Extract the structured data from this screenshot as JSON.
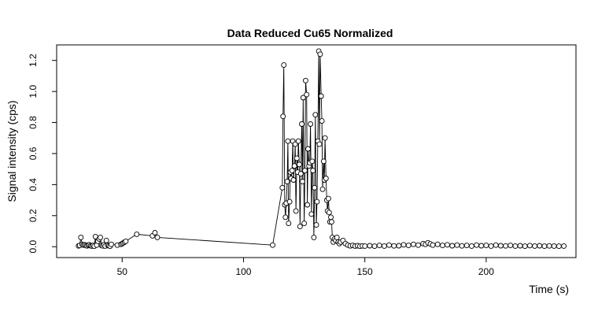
{
  "chart_data": {
    "type": "scatter",
    "title": "Data Reduced Cu65 Normalized",
    "xlabel": "Time (s)",
    "ylabel": "Signal intensity (cps)",
    "xlim": [
      23,
      237
    ],
    "ylim": [
      -0.07,
      1.3
    ],
    "xticks": [
      50,
      100,
      150,
      200
    ],
    "yticks": [
      0.0,
      0.2,
      0.4,
      0.6,
      0.8,
      1.0,
      1.2
    ],
    "grid": false,
    "legend": "none",
    "line_color": "#000000",
    "marker": "open-circle",
    "series": [
      {
        "points": [
          [
            32.0,
            0.005
          ],
          [
            32.5,
            0.008
          ],
          [
            33.0,
            0.06
          ],
          [
            33.5,
            0.015
          ],
          [
            34.0,
            0.01
          ],
          [
            34.5,
            0.012
          ],
          [
            35.0,
            0.008
          ],
          [
            35.5,
            0.005
          ],
          [
            36.0,
            0.01
          ],
          [
            36.5,
            0.012
          ],
          [
            37.0,
            0.006
          ],
          [
            37.5,
            0.004
          ],
          [
            38.0,
            0.008
          ],
          [
            38.5,
            0.003
          ],
          [
            39.0,
            0.065
          ],
          [
            39.5,
            0.01
          ],
          [
            40.0,
            0.035
          ],
          [
            40.5,
            0.05
          ],
          [
            41.0,
            0.06
          ],
          [
            41.5,
            0.008
          ],
          [
            42.0,
            0.005
          ],
          [
            42.5,
            0.012
          ],
          [
            43.0,
            0.004
          ],
          [
            43.5,
            0.04
          ],
          [
            44.0,
            0.01
          ],
          [
            44.5,
            0.006
          ],
          [
            45.0,
            0.003
          ],
          [
            45.5,
            0.015
          ],
          [
            48.0,
            0.01
          ],
          [
            49.5,
            0.015
          ],
          [
            50.0,
            0.02
          ],
          [
            50.5,
            0.025
          ],
          [
            51.0,
            0.03
          ],
          [
            51.5,
            0.035
          ],
          [
            56.0,
            0.08
          ],
          [
            62.5,
            0.07
          ],
          [
            63.5,
            0.09
          ],
          [
            64.5,
            0.06
          ],
          [
            112.0,
            0.01
          ],
          [
            116.0,
            0.38
          ],
          [
            116.3,
            0.84
          ],
          [
            116.6,
            1.17
          ],
          [
            117.0,
            0.27
          ],
          [
            117.3,
            0.19
          ],
          [
            117.6,
            0.28
          ],
          [
            118.0,
            0.42
          ],
          [
            118.3,
            0.68
          ],
          [
            118.6,
            0.15
          ],
          [
            119.0,
            0.29
          ],
          [
            119.3,
            0.48
          ],
          [
            119.6,
            0.44
          ],
          [
            120.0,
            0.49
          ],
          [
            120.3,
            0.68
          ],
          [
            120.6,
            0.43
          ],
          [
            121.0,
            0.52
          ],
          [
            121.3,
            0.66
          ],
          [
            121.6,
            0.23
          ],
          [
            122.0,
            0.57
          ],
          [
            122.3,
            0.48
          ],
          [
            122.6,
            0.68
          ],
          [
            123.0,
            0.53
          ],
          [
            123.3,
            0.13
          ],
          [
            123.6,
            0.47
          ],
          [
            124.0,
            0.79
          ],
          [
            124.3,
            0.42
          ],
          [
            124.6,
            0.96
          ],
          [
            125.0,
            0.15
          ],
          [
            125.3,
            0.49
          ],
          [
            125.6,
            1.07
          ],
          [
            126.0,
            0.98
          ],
          [
            126.3,
            0.27
          ],
          [
            126.6,
            0.63
          ],
          [
            127.0,
            0.52
          ],
          [
            127.3,
            0.54
          ],
          [
            127.6,
            0.79
          ],
          [
            128.0,
            0.21
          ],
          [
            128.3,
            0.55
          ],
          [
            128.6,
            0.49
          ],
          [
            129.0,
            0.06
          ],
          [
            129.3,
            0.38
          ],
          [
            129.6,
            0.85
          ],
          [
            130.0,
            0.14
          ],
          [
            130.3,
            0.29
          ],
          [
            130.6,
            0.68
          ],
          [
            131.0,
            1.26
          ],
          [
            131.3,
            0.66
          ],
          [
            131.6,
            1.24
          ],
          [
            132.0,
            0.97
          ],
          [
            132.3,
            0.81
          ],
          [
            132.6,
            0.37
          ],
          [
            133.0,
            0.55
          ],
          [
            133.3,
            0.43
          ],
          [
            133.6,
            0.7
          ],
          [
            134.0,
            0.44
          ],
          [
            134.3,
            0.3
          ],
          [
            134.6,
            0.23
          ],
          [
            135.0,
            0.31
          ],
          [
            135.3,
            0.22
          ],
          [
            135.6,
            0.16
          ],
          [
            136.0,
            0.19
          ],
          [
            136.3,
            0.16
          ],
          [
            136.6,
            0.06
          ],
          [
            137.0,
            0.03
          ],
          [
            137.5,
            0.05
          ],
          [
            138.0,
            0.04
          ],
          [
            138.5,
            0.06
          ],
          [
            139.0,
            0.03
          ],
          [
            139.5,
            0.02
          ],
          [
            140.0,
            0.03
          ],
          [
            141.0,
            0.04
          ],
          [
            142.0,
            0.02
          ],
          [
            143.0,
            0.01
          ],
          [
            144.0,
            0.005
          ],
          [
            145.0,
            0.008
          ],
          [
            146.0,
            0.004
          ],
          [
            147.0,
            0.006
          ],
          [
            148.0,
            0.003
          ],
          [
            149.0,
            0.005
          ],
          [
            150.0,
            0.004
          ],
          [
            152.0,
            0.006
          ],
          [
            154.0,
            0.003
          ],
          [
            156.0,
            0.008
          ],
          [
            158.0,
            0.004
          ],
          [
            160.0,
            0.01
          ],
          [
            162.0,
            0.005
          ],
          [
            164.0,
            0.006
          ],
          [
            166.0,
            0.012
          ],
          [
            168.0,
            0.008
          ],
          [
            170.0,
            0.015
          ],
          [
            172.0,
            0.01
          ],
          [
            174.0,
            0.02
          ],
          [
            175.0,
            0.015
          ],
          [
            176.0,
            0.025
          ],
          [
            177.0,
            0.018
          ],
          [
            178.0,
            0.01
          ],
          [
            180.0,
            0.015
          ],
          [
            182.0,
            0.008
          ],
          [
            184.0,
            0.012
          ],
          [
            186.0,
            0.006
          ],
          [
            188.0,
            0.01
          ],
          [
            190.0,
            0.005
          ],
          [
            192.0,
            0.008
          ],
          [
            194.0,
            0.004
          ],
          [
            196.0,
            0.01
          ],
          [
            198.0,
            0.006
          ],
          [
            200.0,
            0.008
          ],
          [
            202.0,
            0.004
          ],
          [
            204.0,
            0.01
          ],
          [
            206.0,
            0.006
          ],
          [
            208.0,
            0.005
          ],
          [
            210.0,
            0.008
          ],
          [
            212.0,
            0.004
          ],
          [
            214.0,
            0.006
          ],
          [
            216.0,
            0.003
          ],
          [
            218.0,
            0.007
          ],
          [
            220.0,
            0.004
          ],
          [
            222.0,
            0.006
          ],
          [
            224.0,
            0.003
          ],
          [
            226.0,
            0.005
          ],
          [
            228.0,
            0.004
          ],
          [
            230.0,
            0.003
          ],
          [
            232.0,
            0.004
          ]
        ]
      }
    ]
  }
}
